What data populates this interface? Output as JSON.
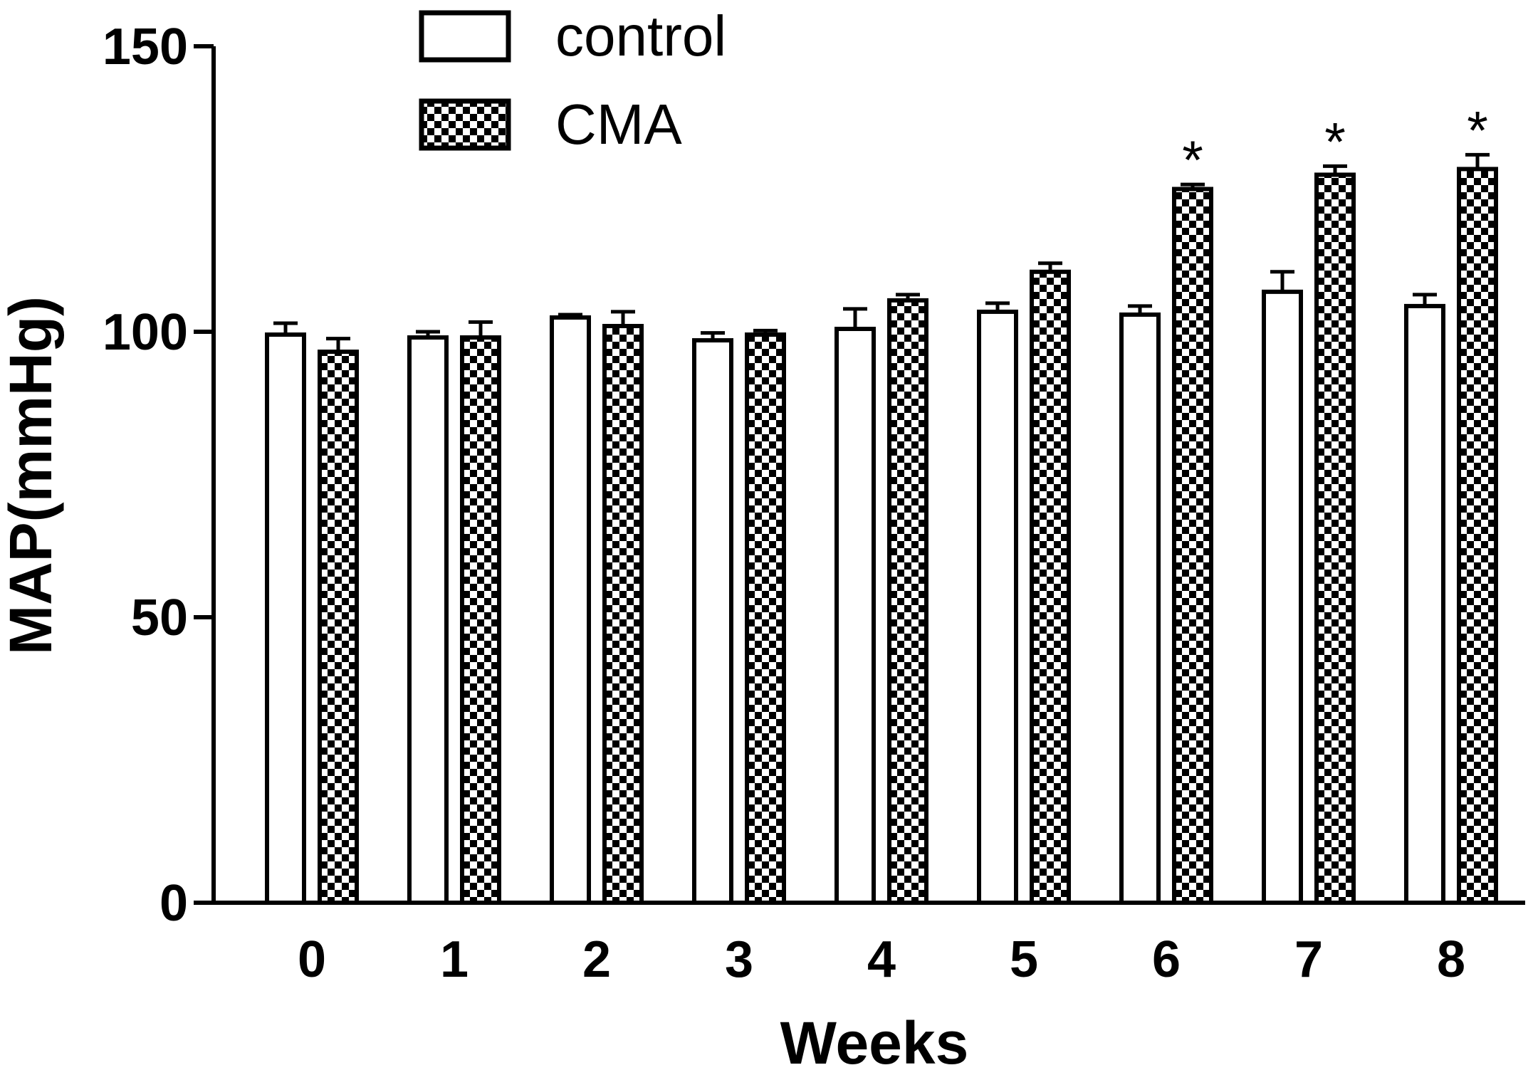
{
  "chart_data": {
    "type": "bar",
    "title": "",
    "xlabel": "Weeks",
    "ylabel": "MAP(mmHg)",
    "ylim": [
      0,
      150
    ],
    "yticks": [
      0,
      50,
      100,
      150
    ],
    "categories": [
      "0",
      "1",
      "2",
      "3",
      "4",
      "5",
      "6",
      "7",
      "8"
    ],
    "series": [
      {
        "name": "control",
        "pattern": "open",
        "values": [
          99.5,
          99.0,
          102.5,
          98.5,
          100.5,
          103.5,
          103.0,
          107.0,
          104.5
        ],
        "errors": [
          2.0,
          1.0,
          0.5,
          1.3,
          3.5,
          1.5,
          1.5,
          3.5,
          2.0
        ]
      },
      {
        "name": "CMA",
        "pattern": "checkered",
        "values": [
          96.5,
          99.0,
          101.0,
          99.5,
          105.5,
          110.5,
          125.0,
          127.5,
          128.5
        ],
        "errors": [
          2.3,
          2.7,
          2.5,
          0.7,
          1.0,
          1.5,
          0.8,
          1.5,
          2.5
        ]
      }
    ],
    "significance": [
      {
        "category": "6",
        "series": "CMA",
        "label": "*"
      },
      {
        "category": "7",
        "series": "CMA",
        "label": "*"
      },
      {
        "category": "8",
        "series": "CMA",
        "label": "*"
      }
    ],
    "legend": {
      "position": "top-left"
    },
    "grid": false,
    "colors": {
      "bar_stroke": "#000000",
      "bar_fill": "#ffffff",
      "pattern_fill": "#000000"
    }
  }
}
